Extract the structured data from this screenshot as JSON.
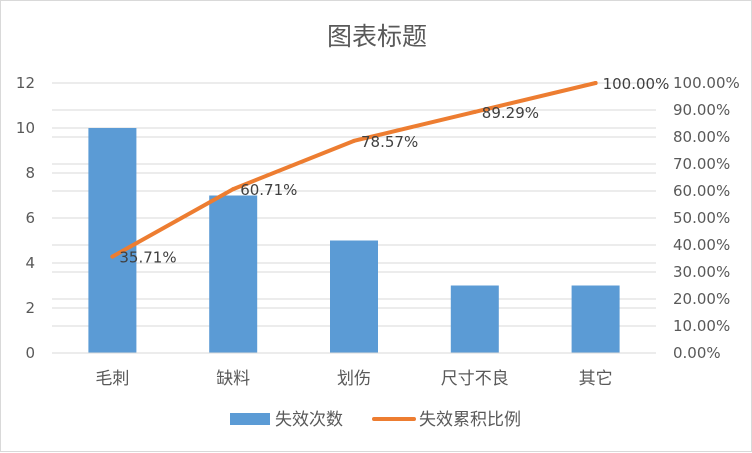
{
  "chart_data": {
    "type": "bar",
    "title": "图表标题",
    "categories": [
      "毛刺",
      "缺料",
      "划伤",
      "尺寸不良",
      "其它"
    ],
    "series": [
      {
        "name": "失效次数",
        "type": "bar",
        "axis": "left",
        "values": [
          10,
          7,
          5,
          3,
          3
        ],
        "color": "#5b9bd5"
      },
      {
        "name": "失效累积比例",
        "type": "line",
        "axis": "right",
        "values": [
          35.71,
          60.71,
          78.57,
          89.29,
          100.0
        ],
        "color": "#ed7d31"
      }
    ],
    "data_labels": [
      "35.71%",
      "60.71%",
      "78.57%",
      "89.29%",
      "100.00%"
    ],
    "y_left": {
      "min": 0,
      "max": 12,
      "ticks": [
        "0",
        "2",
        "4",
        "6",
        "8",
        "10",
        "12"
      ]
    },
    "y_right": {
      "min": 0,
      "max": 100,
      "ticks": [
        "0.00%",
        "10.00%",
        "20.00%",
        "30.00%",
        "40.00%",
        "50.00%",
        "60.00%",
        "70.00%",
        "80.00%",
        "90.00%",
        "100.00%"
      ]
    },
    "grid": true,
    "legend": "bottom",
    "gridline_color": "#d9d9d9"
  }
}
